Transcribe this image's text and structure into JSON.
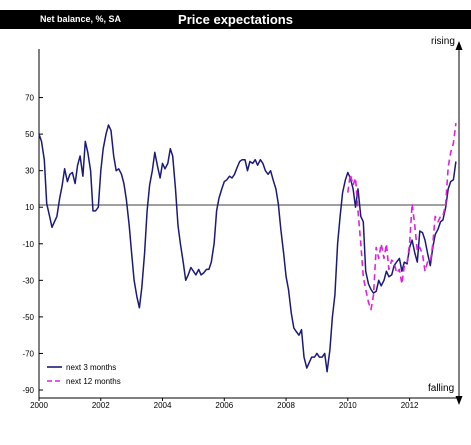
{
  "chart_data": {
    "type": "line",
    "title": "Price expectations",
    "subtitle": "Net balance, %, SA",
    "ylim": [
      -90,
      90
    ],
    "xlim": [
      2000,
      2013.6
    ],
    "y_ticks": [
      "70",
      "50",
      "30",
      "10",
      "-10",
      "-30",
      "-50",
      "-70",
      "-90"
    ],
    "x_ticks": [
      "2000",
      "2002",
      "2004",
      "2006",
      "2008",
      "2010",
      "2012"
    ],
    "annotations": {
      "top": "rising",
      "bottom": "falling"
    },
    "zero_line": true,
    "grid": false,
    "legend_position": "bottom-left",
    "series": [
      {
        "name": "next 3 months",
        "color": "#1a1a7a",
        "style": "solid",
        "points": [
          [
            2000.0,
            50
          ],
          [
            2000.08,
            46
          ],
          [
            2000.17,
            36
          ],
          [
            2000.25,
            12
          ],
          [
            2000.33,
            6
          ],
          [
            2000.42,
            -1
          ],
          [
            2000.5,
            2
          ],
          [
            2000.58,
            5
          ],
          [
            2000.67,
            15
          ],
          [
            2000.75,
            22
          ],
          [
            2000.83,
            31
          ],
          [
            2000.92,
            24
          ],
          [
            2001.0,
            28
          ],
          [
            2001.08,
            29
          ],
          [
            2001.17,
            23
          ],
          [
            2001.25,
            33
          ],
          [
            2001.33,
            38
          ],
          [
            2001.42,
            27
          ],
          [
            2001.5,
            46
          ],
          [
            2001.58,
            40
          ],
          [
            2001.67,
            30
          ],
          [
            2001.75,
            8
          ],
          [
            2001.83,
            8
          ],
          [
            2001.92,
            10
          ],
          [
            2002.0,
            30
          ],
          [
            2002.08,
            42
          ],
          [
            2002.17,
            50
          ],
          [
            2002.25,
            55
          ],
          [
            2002.33,
            52
          ],
          [
            2002.42,
            38
          ],
          [
            2002.5,
            30
          ],
          [
            2002.58,
            31
          ],
          [
            2002.67,
            28
          ],
          [
            2002.75,
            23
          ],
          [
            2002.83,
            14
          ],
          [
            2002.92,
            0
          ],
          [
            2003.0,
            -15
          ],
          [
            2003.08,
            -30
          ],
          [
            2003.17,
            -39
          ],
          [
            2003.25,
            -45
          ],
          [
            2003.33,
            -34
          ],
          [
            2003.42,
            -15
          ],
          [
            2003.5,
            8
          ],
          [
            2003.58,
            22
          ],
          [
            2003.67,
            30
          ],
          [
            2003.75,
            40
          ],
          [
            2003.83,
            33
          ],
          [
            2003.92,
            26
          ],
          [
            2004.0,
            34
          ],
          [
            2004.08,
            31
          ],
          [
            2004.17,
            34
          ],
          [
            2004.25,
            42
          ],
          [
            2004.33,
            38
          ],
          [
            2004.42,
            20
          ],
          [
            2004.5,
            0
          ],
          [
            2004.58,
            -10
          ],
          [
            2004.67,
            -20
          ],
          [
            2004.75,
            -30
          ],
          [
            2004.83,
            -27
          ],
          [
            2004.92,
            -23
          ],
          [
            2005.0,
            -25
          ],
          [
            2005.08,
            -27
          ],
          [
            2005.17,
            -24
          ],
          [
            2005.25,
            -27
          ],
          [
            2005.33,
            -26
          ],
          [
            2005.42,
            -24
          ],
          [
            2005.5,
            -24
          ],
          [
            2005.58,
            -20
          ],
          [
            2005.67,
            -10
          ],
          [
            2005.75,
            8
          ],
          [
            2005.83,
            15
          ],
          [
            2005.92,
            20
          ],
          [
            2006.0,
            24
          ],
          [
            2006.08,
            25
          ],
          [
            2006.17,
            27
          ],
          [
            2006.25,
            26
          ],
          [
            2006.33,
            28
          ],
          [
            2006.42,
            32
          ],
          [
            2006.5,
            35
          ],
          [
            2006.58,
            36
          ],
          [
            2006.67,
            36
          ],
          [
            2006.75,
            30
          ],
          [
            2006.83,
            35
          ],
          [
            2006.92,
            34
          ],
          [
            2007.0,
            36
          ],
          [
            2007.08,
            33
          ],
          [
            2007.17,
            36
          ],
          [
            2007.25,
            34
          ],
          [
            2007.33,
            30
          ],
          [
            2007.42,
            28
          ],
          [
            2007.5,
            30
          ],
          [
            2007.58,
            25
          ],
          [
            2007.67,
            20
          ],
          [
            2007.75,
            12
          ],
          [
            2007.83,
            -2
          ],
          [
            2007.92,
            -15
          ],
          [
            2008.0,
            -28
          ],
          [
            2008.08,
            -35
          ],
          [
            2008.17,
            -48
          ],
          [
            2008.25,
            -56
          ],
          [
            2008.33,
            -58
          ],
          [
            2008.42,
            -60
          ],
          [
            2008.5,
            -57
          ],
          [
            2008.58,
            -72
          ],
          [
            2008.67,
            -78
          ],
          [
            2008.75,
            -75
          ],
          [
            2008.83,
            -72
          ],
          [
            2008.92,
            -72
          ],
          [
            2009.0,
            -70
          ],
          [
            2009.08,
            -72
          ],
          [
            2009.17,
            -72
          ],
          [
            2009.25,
            -70
          ],
          [
            2009.33,
            -80
          ],
          [
            2009.42,
            -68
          ],
          [
            2009.5,
            -50
          ],
          [
            2009.58,
            -38
          ],
          [
            2009.67,
            -10
          ],
          [
            2009.75,
            5
          ],
          [
            2009.83,
            18
          ],
          [
            2009.92,
            25
          ],
          [
            2010.0,
            29
          ],
          [
            2010.08,
            26
          ],
          [
            2010.17,
            20
          ],
          [
            2010.25,
            10
          ],
          [
            2010.33,
            20
          ],
          [
            2010.42,
            5
          ],
          [
            2010.5,
            2
          ],
          [
            2010.58,
            -25
          ],
          [
            2010.67,
            -32
          ],
          [
            2010.75,
            -35
          ],
          [
            2010.83,
            -37
          ],
          [
            2010.92,
            -36
          ],
          [
            2011.0,
            -30
          ],
          [
            2011.08,
            -33
          ],
          [
            2011.17,
            -30
          ],
          [
            2011.25,
            -25
          ],
          [
            2011.33,
            -28
          ],
          [
            2011.42,
            -27
          ],
          [
            2011.5,
            -22
          ],
          [
            2011.58,
            -20
          ],
          [
            2011.67,
            -18
          ],
          [
            2011.75,
            -25
          ],
          [
            2011.83,
            -20
          ],
          [
            2011.92,
            -21
          ],
          [
            2012.0,
            -12
          ],
          [
            2012.08,
            -8
          ],
          [
            2012.17,
            -15
          ],
          [
            2012.25,
            -20
          ],
          [
            2012.33,
            -3
          ],
          [
            2012.42,
            -4
          ],
          [
            2012.5,
            -8
          ],
          [
            2012.58,
            -15
          ],
          [
            2012.67,
            -22
          ],
          [
            2012.75,
            -12
          ],
          [
            2012.83,
            -5
          ],
          [
            2012.92,
            -2
          ],
          [
            2013.0,
            2
          ],
          [
            2013.08,
            3
          ],
          [
            2013.17,
            10
          ],
          [
            2013.25,
            20
          ],
          [
            2013.33,
            24
          ],
          [
            2013.42,
            25
          ],
          [
            2013.5,
            35
          ]
        ]
      },
      {
        "name": "next 12 months",
        "color": "#e020e0",
        "style": "dashed",
        "points": [
          [
            2010.0,
            18
          ],
          [
            2010.08,
            28
          ],
          [
            2010.17,
            22
          ],
          [
            2010.25,
            26
          ],
          [
            2010.33,
            8
          ],
          [
            2010.42,
            -10
          ],
          [
            2010.5,
            -28
          ],
          [
            2010.58,
            -35
          ],
          [
            2010.67,
            -42
          ],
          [
            2010.75,
            -46
          ],
          [
            2010.83,
            -38
          ],
          [
            2010.92,
            -12
          ],
          [
            2011.0,
            -18
          ],
          [
            2011.08,
            -10
          ],
          [
            2011.17,
            -18
          ],
          [
            2011.25,
            -10
          ],
          [
            2011.33,
            -24
          ],
          [
            2011.42,
            -19
          ],
          [
            2011.5,
            -20
          ],
          [
            2011.58,
            -26
          ],
          [
            2011.67,
            -24
          ],
          [
            2011.75,
            -32
          ],
          [
            2011.83,
            -22
          ],
          [
            2011.92,
            -20
          ],
          [
            2012.0,
            -10
          ],
          [
            2012.08,
            12
          ],
          [
            2012.17,
            0
          ],
          [
            2012.25,
            -14
          ],
          [
            2012.33,
            -12
          ],
          [
            2012.42,
            -16
          ],
          [
            2012.5,
            -25
          ],
          [
            2012.58,
            -20
          ],
          [
            2012.67,
            -20
          ],
          [
            2012.75,
            -10
          ],
          [
            2012.83,
            5
          ],
          [
            2012.92,
            2
          ],
          [
            2013.0,
            5
          ],
          [
            2013.08,
            5
          ],
          [
            2013.17,
            12
          ],
          [
            2013.25,
            32
          ],
          [
            2013.33,
            40
          ],
          [
            2013.42,
            45
          ],
          [
            2013.5,
            56
          ]
        ]
      }
    ]
  }
}
